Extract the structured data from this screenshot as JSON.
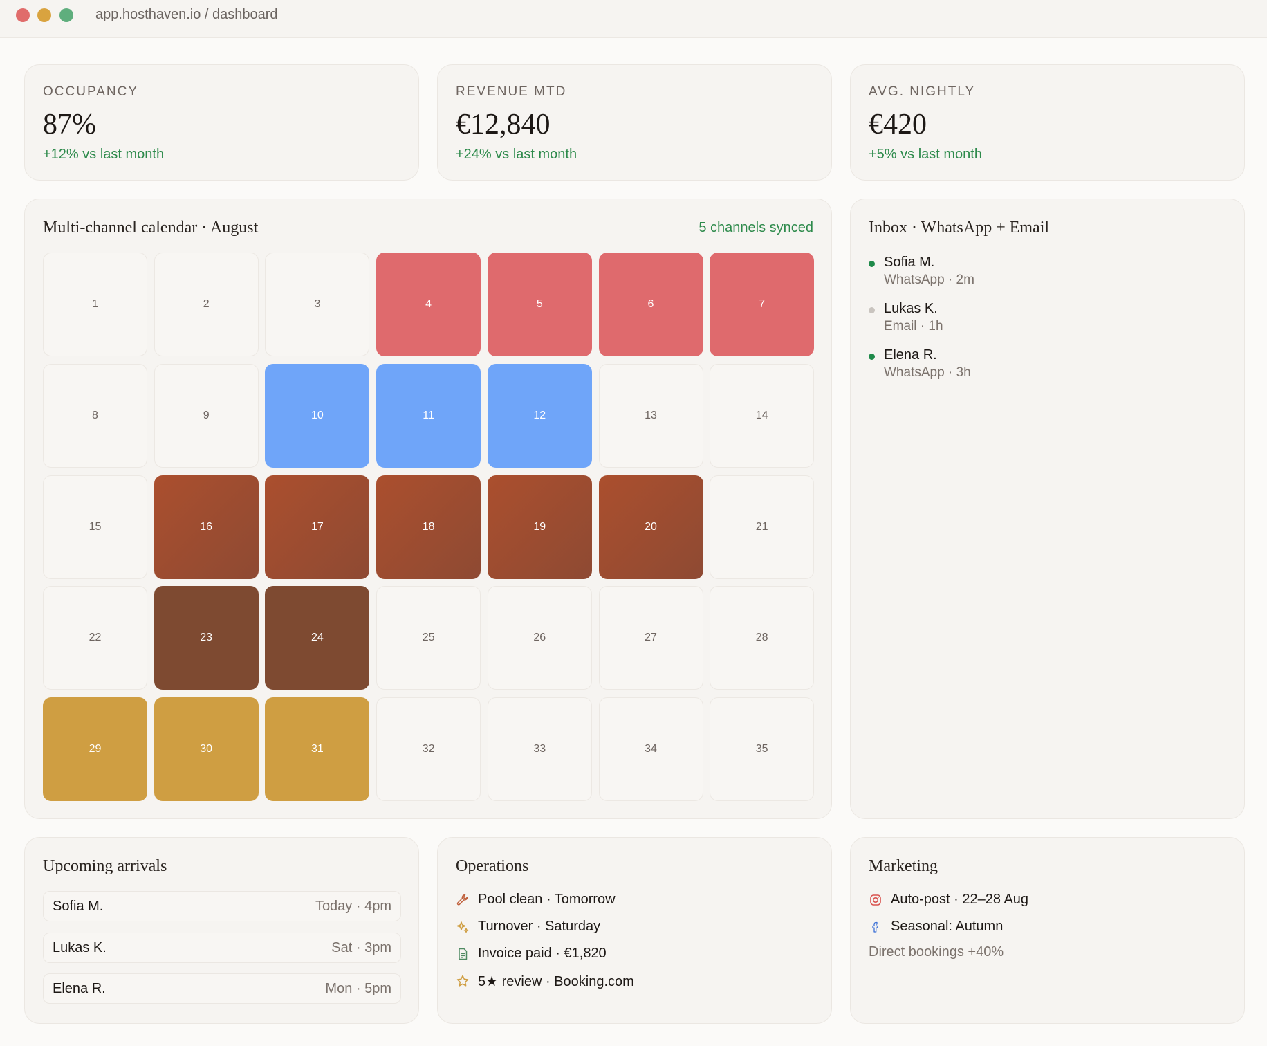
{
  "window": {
    "url": "app.hosthaven.io / dashboard",
    "traffic_lights": [
      "#e06c6b",
      "#d9a33f",
      "#5fae7d"
    ]
  },
  "stats": [
    {
      "label": "OCCUPANCY",
      "value": "87%",
      "delta": "+12% vs last month"
    },
    {
      "label": "REVENUE MTD",
      "value": "€12,840",
      "delta": "+24% vs last month"
    },
    {
      "label": "AVG. NIGHTLY",
      "value": "€420",
      "delta": "+5% vs last month"
    }
  ],
  "calendar": {
    "title": "Multi-channel calendar · August",
    "sync_status": "5 channels synced",
    "days": [
      {
        "day": "1",
        "status": ""
      },
      {
        "day": "2",
        "status": ""
      },
      {
        "day": "3",
        "status": ""
      },
      {
        "day": "4",
        "status": "red"
      },
      {
        "day": "5",
        "status": "red"
      },
      {
        "day": "6",
        "status": "red"
      },
      {
        "day": "7",
        "status": "red"
      },
      {
        "day": "8",
        "status": ""
      },
      {
        "day": "9",
        "status": ""
      },
      {
        "day": "10",
        "status": "blue"
      },
      {
        "day": "11",
        "status": "blue"
      },
      {
        "day": "12",
        "status": "blue"
      },
      {
        "day": "13",
        "status": ""
      },
      {
        "day": "14",
        "status": ""
      },
      {
        "day": "15",
        "status": ""
      },
      {
        "day": "16",
        "status": "rust"
      },
      {
        "day": "17",
        "status": "rust"
      },
      {
        "day": "18",
        "status": "rust"
      },
      {
        "day": "19",
        "status": "rust"
      },
      {
        "day": "20",
        "status": "rust"
      },
      {
        "day": "21",
        "status": ""
      },
      {
        "day": "22",
        "status": ""
      },
      {
        "day": "23",
        "status": "brown"
      },
      {
        "day": "24",
        "status": "brown"
      },
      {
        "day": "25",
        "status": ""
      },
      {
        "day": "26",
        "status": ""
      },
      {
        "day": "27",
        "status": ""
      },
      {
        "day": "28",
        "status": ""
      },
      {
        "day": "29",
        "status": "gold"
      },
      {
        "day": "30",
        "status": "gold"
      },
      {
        "day": "31",
        "status": "gold"
      },
      {
        "day": "32",
        "status": ""
      },
      {
        "day": "33",
        "status": ""
      },
      {
        "day": "34",
        "status": ""
      },
      {
        "day": "35",
        "status": ""
      }
    ]
  },
  "inbox": {
    "title": "Inbox · WhatsApp + Email",
    "messages": [
      {
        "name": "Sofia M.",
        "meta": "WhatsApp · 2m",
        "dot_color": "#1f8a4a"
      },
      {
        "name": "Lukas K.",
        "meta": "Email · 1h",
        "dot_color": "#c9c4bf"
      },
      {
        "name": "Elena R.",
        "meta": "WhatsApp · 3h",
        "dot_color": "#1f8a4a"
      }
    ]
  },
  "arrivals": {
    "title": "Upcoming arrivals",
    "rows": [
      {
        "name": "Sofia M.",
        "time": "Today · 4pm"
      },
      {
        "name": "Lukas K.",
        "time": "Sat · 3pm"
      },
      {
        "name": "Elena R.",
        "time": "Mon · 5pm"
      }
    ]
  },
  "operations": {
    "title": "Operations",
    "items": [
      {
        "icon": "wrench-icon",
        "text": "Pool clean · Tomorrow"
      },
      {
        "icon": "sparkle-icon",
        "text": "Turnover · Saturday"
      },
      {
        "icon": "document-icon",
        "text": "Invoice paid · €1,820"
      },
      {
        "icon": "star-icon",
        "text": "5★ review · Booking.com"
      }
    ]
  },
  "marketing": {
    "title": "Marketing",
    "items": [
      {
        "icon": "instagram-icon",
        "text": "Auto-post · 22–28 Aug"
      },
      {
        "icon": "facebook-icon",
        "text": "Seasonal: Autumn"
      }
    ],
    "note": "Direct bookings +40%"
  }
}
